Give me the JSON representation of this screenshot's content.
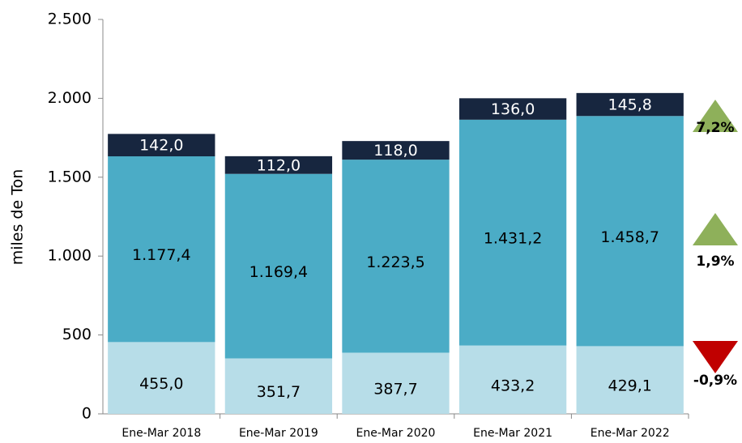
{
  "chart_data": {
    "type": "stacked_bar",
    "y_label": "miles de Ton",
    "categories": [
      "Ene-Mar 2018",
      "Ene-Mar 2019",
      "Ene-Mar 2020",
      "Ene-Mar 2021",
      "Ene-Mar 2022"
    ],
    "series": [
      {
        "color": "#b7dde8",
        "label_color": "#000000",
        "values": [
          455.0,
          351.7,
          387.7,
          433.2,
          429.1
        ],
        "value_labels": [
          "455,0",
          "351,7",
          "387,7",
          "433,2",
          "429,1"
        ]
      },
      {
        "color": "#4bacc6",
        "label_color": "#000000",
        "values": [
          1177.4,
          1169.4,
          1223.5,
          1431.2,
          1458.7
        ],
        "value_labels": [
          "1.177,4",
          "1.169,4",
          "1.223,5",
          "1.431,2",
          "1.458,7"
        ]
      },
      {
        "color": "#17263f",
        "label_color": "#ffffff",
        "values": [
          142.0,
          112.0,
          118.0,
          136.0,
          145.8
        ],
        "value_labels": [
          "142,0",
          "112,0",
          "118,0",
          "136,0",
          "145,8"
        ]
      }
    ],
    "ylim": [
      0,
      2500
    ],
    "yticks": [
      0,
      500,
      {
        "value": 1000,
        "label": "1.000"
      },
      {
        "value": 1500,
        "label": "1.500"
      },
      {
        "value": 2000,
        "label": "2.000"
      },
      {
        "value": 2500,
        "label": "2.500"
      }
    ],
    "annotations": [
      {
        "text": "7,2%",
        "direction": "up",
        "color": "#8eb05a"
      },
      {
        "text": "1,9%",
        "direction": "up",
        "color": "#8eb05a"
      },
      {
        "text": "-0,9%",
        "direction": "down",
        "color": "#c00000"
      }
    ]
  }
}
